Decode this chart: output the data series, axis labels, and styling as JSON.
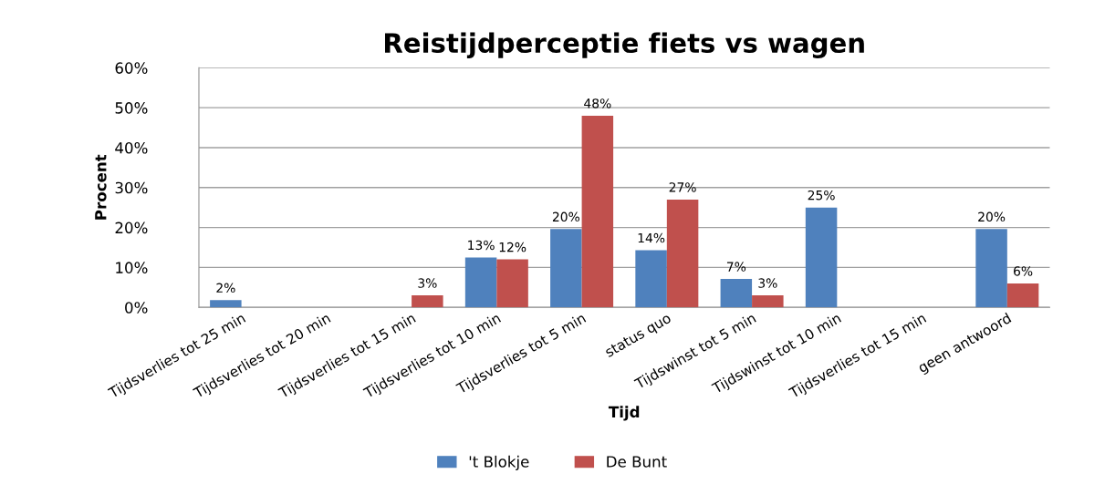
{
  "chart_data": {
    "type": "bar",
    "title": "Reistijdperceptie fiets vs wagen",
    "xlabel": "Tijd",
    "ylabel": "Procent",
    "categories": [
      "Tijdsverlies tot 25 min",
      "Tijdsverlies tot 20 min",
      "Tijdsverlies tot 15 min",
      "Tijdsverlies tot 10 min",
      "Tijdsverlies tot 5 min",
      "status quo",
      "Tijdswinst tot 5 min",
      "Tijdswinst tot 10 min",
      "Tijdsverlies tot 15 min",
      "geen antwoord"
    ],
    "series": [
      {
        "name": "'t Blokje",
        "color": "#4f81bd",
        "values": [
          1.8,
          null,
          null,
          12.5,
          19.6,
          14.3,
          7.1,
          25,
          null,
          19.6
        ],
        "value_labels": [
          "2%",
          null,
          null,
          "13%",
          "20%",
          "14%",
          "7%",
          "25%",
          null,
          "20%"
        ]
      },
      {
        "name": "De Bunt",
        "color": "#c0504d",
        "values": [
          null,
          null,
          3,
          12,
          48,
          27,
          3,
          null,
          null,
          6
        ],
        "value_labels": [
          null,
          null,
          "3%",
          "12%",
          "48%",
          "27%",
          "3%",
          null,
          null,
          "6%"
        ]
      }
    ],
    "ylim": [
      0,
      60
    ],
    "yticks": [
      {
        "value": 0,
        "label": "0%"
      },
      {
        "value": 10,
        "label": "10%"
      },
      {
        "value": 20,
        "label": "20%"
      },
      {
        "value": 30,
        "label": "30%"
      },
      {
        "value": 40,
        "label": "40%"
      },
      {
        "value": 50,
        "label": "50%"
      },
      {
        "value": 60,
        "label": "60%"
      }
    ],
    "grid": "y",
    "legend": "bottom"
  }
}
